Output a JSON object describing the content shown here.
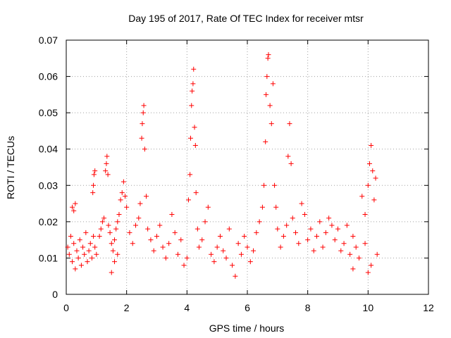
{
  "chart_data": {
    "type": "scatter",
    "title": "Day 195 of 2017, Rate Of TEC Index for receiver mtsr",
    "xlabel": "GPS time / hours",
    "ylabel": "ROTI / TECUs",
    "xlim": [
      0,
      12
    ],
    "ylim": [
      0,
      0.07
    ],
    "xticks": [
      "0",
      "2",
      "4",
      "6",
      "8",
      "10",
      "12"
    ],
    "yticks": [
      "0",
      "0.01",
      "0.02",
      "0.03",
      "0.04",
      "0.05",
      "0.06",
      "0.07"
    ],
    "xtick_values": [
      0,
      2,
      4,
      6,
      8,
      10,
      12
    ],
    "ytick_values": [
      0,
      0.01,
      0.02,
      0.03,
      0.04,
      0.05,
      0.06,
      0.07
    ],
    "grid": true,
    "marker": "+",
    "color": "#ff0000",
    "series": [
      {
        "name": "ROTI",
        "points": [
          [
            0.05,
            0.013
          ],
          [
            0.1,
            0.011
          ],
          [
            0.15,
            0.016
          ],
          [
            0.2,
            0.009
          ],
          [
            0.25,
            0.014
          ],
          [
            0.3,
            0.007
          ],
          [
            0.35,
            0.012
          ],
          [
            0.4,
            0.01
          ],
          [
            0.45,
            0.015
          ],
          [
            0.5,
            0.008
          ],
          [
            0.55,
            0.013
          ],
          [
            0.6,
            0.011
          ],
          [
            0.65,
            0.017
          ],
          [
            0.7,
            0.009
          ],
          [
            0.75,
            0.012
          ],
          [
            0.8,
            0.014
          ],
          [
            0.85,
            0.01
          ],
          [
            0.9,
            0.016
          ],
          [
            0.95,
            0.013
          ],
          [
            1.0,
            0.011
          ],
          [
            0.2,
            0.024
          ],
          [
            0.25,
            0.023
          ],
          [
            0.3,
            0.025
          ],
          [
            0.9,
            0.03
          ],
          [
            0.92,
            0.033
          ],
          [
            0.95,
            0.034
          ],
          [
            0.88,
            0.028
          ],
          [
            1.1,
            0.016
          ],
          [
            1.15,
            0.018
          ],
          [
            1.2,
            0.02
          ],
          [
            1.25,
            0.021
          ],
          [
            1.3,
            0.034
          ],
          [
            1.33,
            0.036
          ],
          [
            1.35,
            0.038
          ],
          [
            1.38,
            0.033
          ],
          [
            1.4,
            0.019
          ],
          [
            1.45,
            0.017
          ],
          [
            1.5,
            0.014
          ],
          [
            1.55,
            0.012
          ],
          [
            1.6,
            0.015
          ],
          [
            1.65,
            0.018
          ],
          [
            1.7,
            0.02
          ],
          [
            1.75,
            0.022
          ],
          [
            1.8,
            0.026
          ],
          [
            1.85,
            0.028
          ],
          [
            1.9,
            0.031
          ],
          [
            1.95,
            0.027
          ],
          [
            2.0,
            0.024
          ],
          [
            1.5,
            0.006
          ],
          [
            1.6,
            0.009
          ],
          [
            1.7,
            0.011
          ],
          [
            2.1,
            0.017
          ],
          [
            2.2,
            0.014
          ],
          [
            2.3,
            0.019
          ],
          [
            2.4,
            0.021
          ],
          [
            2.45,
            0.025
          ],
          [
            2.5,
            0.043
          ],
          [
            2.52,
            0.047
          ],
          [
            2.55,
            0.05
          ],
          [
            2.57,
            0.052
          ],
          [
            2.6,
            0.04
          ],
          [
            2.65,
            0.027
          ],
          [
            2.7,
            0.018
          ],
          [
            2.8,
            0.015
          ],
          [
            2.9,
            0.012
          ],
          [
            3.0,
            0.016
          ],
          [
            3.1,
            0.019
          ],
          [
            3.2,
            0.013
          ],
          [
            3.3,
            0.01
          ],
          [
            3.4,
            0.014
          ],
          [
            3.5,
            0.022
          ],
          [
            3.6,
            0.017
          ],
          [
            3.7,
            0.011
          ],
          [
            3.8,
            0.015
          ],
          [
            3.9,
            0.008
          ],
          [
            4.0,
            0.01
          ],
          [
            4.05,
            0.026
          ],
          [
            4.1,
            0.033
          ],
          [
            4.12,
            0.043
          ],
          [
            4.15,
            0.052
          ],
          [
            4.17,
            0.056
          ],
          [
            4.2,
            0.058
          ],
          [
            4.22,
            0.062
          ],
          [
            4.25,
            0.046
          ],
          [
            4.28,
            0.041
          ],
          [
            4.3,
            0.028
          ],
          [
            4.35,
            0.018
          ],
          [
            4.4,
            0.013
          ],
          [
            4.5,
            0.015
          ],
          [
            4.6,
            0.02
          ],
          [
            4.7,
            0.024
          ],
          [
            4.8,
            0.011
          ],
          [
            4.9,
            0.009
          ],
          [
            5.0,
            0.013
          ],
          [
            5.1,
            0.016
          ],
          [
            5.2,
            0.012
          ],
          [
            5.3,
            0.01
          ],
          [
            5.4,
            0.018
          ],
          [
            5.5,
            0.008
          ],
          [
            5.6,
            0.005
          ],
          [
            5.7,
            0.014
          ],
          [
            5.8,
            0.011
          ],
          [
            5.9,
            0.016
          ],
          [
            6.0,
            0.013
          ],
          [
            6.1,
            0.009
          ],
          [
            6.2,
            0.012
          ],
          [
            6.3,
            0.017
          ],
          [
            6.4,
            0.02
          ],
          [
            6.5,
            0.024
          ],
          [
            6.55,
            0.03
          ],
          [
            6.6,
            0.042
          ],
          [
            6.62,
            0.055
          ],
          [
            6.65,
            0.06
          ],
          [
            6.68,
            0.065
          ],
          [
            6.7,
            0.066
          ],
          [
            6.75,
            0.052
          ],
          [
            6.8,
            0.047
          ],
          [
            6.85,
            0.058
          ],
          [
            6.9,
            0.03
          ],
          [
            6.95,
            0.024
          ],
          [
            7.0,
            0.018
          ],
          [
            7.1,
            0.013
          ],
          [
            7.2,
            0.016
          ],
          [
            7.3,
            0.019
          ],
          [
            7.35,
            0.038
          ],
          [
            7.4,
            0.047
          ],
          [
            7.45,
            0.036
          ],
          [
            7.5,
            0.021
          ],
          [
            7.6,
            0.017
          ],
          [
            7.7,
            0.014
          ],
          [
            7.8,
            0.025
          ],
          [
            7.9,
            0.022
          ],
          [
            8.0,
            0.015
          ],
          [
            8.1,
            0.018
          ],
          [
            8.2,
            0.012
          ],
          [
            8.3,
            0.016
          ],
          [
            8.4,
            0.02
          ],
          [
            8.5,
            0.013
          ],
          [
            8.6,
            0.017
          ],
          [
            8.7,
            0.021
          ],
          [
            8.8,
            0.019
          ],
          [
            8.9,
            0.015
          ],
          [
            9.0,
            0.018
          ],
          [
            9.1,
            0.012
          ],
          [
            9.2,
            0.014
          ],
          [
            9.3,
            0.019
          ],
          [
            9.4,
            0.011
          ],
          [
            9.5,
            0.016
          ],
          [
            9.6,
            0.013
          ],
          [
            9.7,
            0.01
          ],
          [
            9.8,
            0.027
          ],
          [
            9.9,
            0.022
          ],
          [
            10.0,
            0.03
          ],
          [
            10.05,
            0.036
          ],
          [
            10.1,
            0.041
          ],
          [
            10.15,
            0.034
          ],
          [
            10.2,
            0.026
          ],
          [
            10.25,
            0.032
          ],
          [
            10.3,
            0.011
          ],
          [
            10.0,
            0.006
          ],
          [
            10.1,
            0.008
          ],
          [
            9.9,
            0.014
          ],
          [
            9.5,
            0.007
          ]
        ]
      }
    ]
  }
}
